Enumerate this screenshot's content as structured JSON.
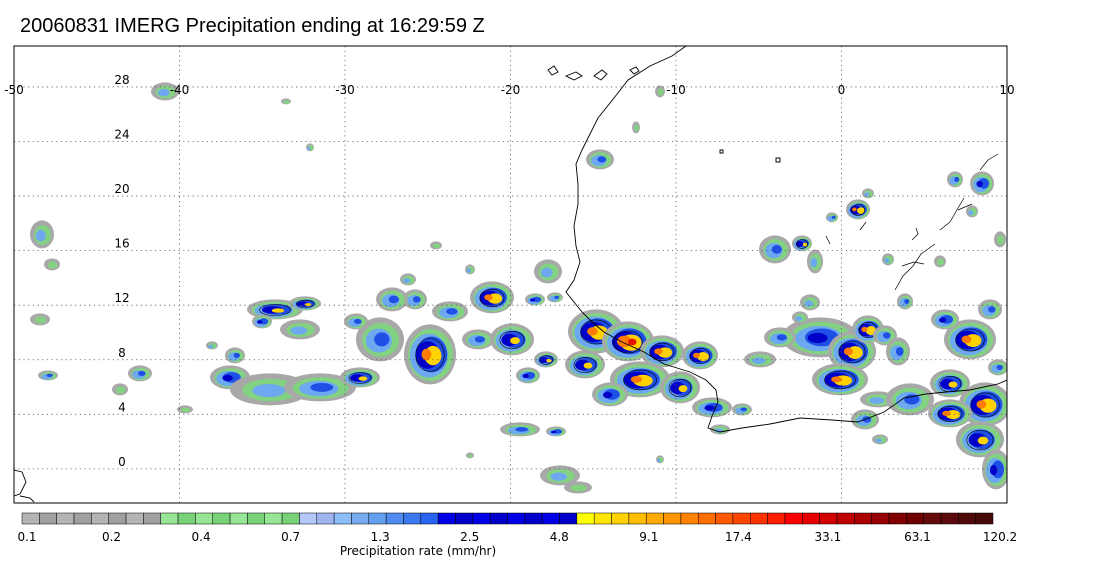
{
  "title": "20060831 IMERG Precipitation ending at 16:29:59 Z",
  "map": {
    "lon_range": [
      -50,
      10
    ],
    "lat_range": [
      -2.5,
      31
    ],
    "lon_labels": [
      "-50",
      "-40",
      "-30",
      "-20",
      "-10",
      "0",
      "10"
    ],
    "lon_values": [
      -50,
      -40,
      -30,
      -20,
      -10,
      0,
      10
    ],
    "lat_labels": [
      "0",
      "4",
      "8",
      "12",
      "16",
      "20",
      "24",
      "28"
    ],
    "lat_values": [
      0,
      4,
      8,
      12,
      16,
      20,
      24,
      28
    ],
    "grid": "dotted"
  },
  "colorbar": {
    "colors": [
      "#b4b4b4",
      "#a0a0a0",
      "#b4b4b4",
      "#a0a0a0",
      "#b4b4b4",
      "#a0a0a0",
      "#b4b4b4",
      "#a0a0a0",
      "#96e696",
      "#78d278",
      "#96e696",
      "#78d278",
      "#96e696",
      "#78d278",
      "#96e696",
      "#78d278",
      "#b4c8fa",
      "#a0b4f0",
      "#8cbefa",
      "#78aaf0",
      "#64a0f0",
      "#508cf0",
      "#3c78f0",
      "#2864f0",
      "#0000e6",
      "#0000c8",
      "#0000e6",
      "#0000c8",
      "#0000e6",
      "#0000c8",
      "#0000e6",
      "#0000c8",
      "#ffff00",
      "#ffe600",
      "#ffd200",
      "#ffbe00",
      "#ffaa00",
      "#ff9600",
      "#ff8200",
      "#ff6e00",
      "#ff5a00",
      "#ff4600",
      "#ff3200",
      "#ff1e00",
      "#fa0000",
      "#e60000",
      "#d20000",
      "#be0000",
      "#aa0000",
      "#960000",
      "#820000",
      "#6e0000",
      "#640a0a",
      "#5a0a0a",
      "#500a0a",
      "#460a0a"
    ],
    "tick_labels": [
      "0.1",
      "0.2",
      "0.4",
      "0.7",
      "1.3",
      "2.5",
      "4.8",
      "9.1",
      "17.4",
      "33.1",
      "63.1",
      "120.2"
    ],
    "label": "Precipitation rate (mm/hr)"
  }
}
